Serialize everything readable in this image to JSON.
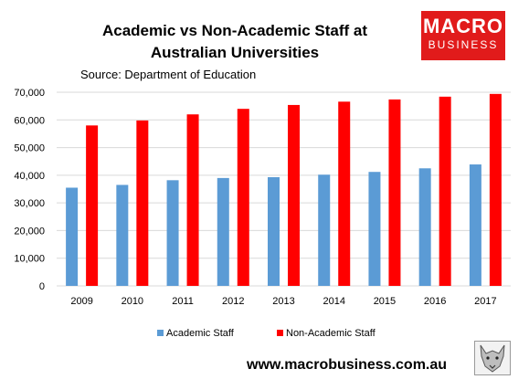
{
  "header": {
    "title": "Academic vs Non-Academic Staff at Australian Universities",
    "source": "Source: Department of Education"
  },
  "logo": {
    "line1": "MACRO",
    "line2": "BUSINESS",
    "color": "#e11b1b"
  },
  "footer": {
    "url": "www.macrobusiness.com.au",
    "icon": "wolf-icon"
  },
  "chart_data": {
    "type": "bar",
    "title": "Academic vs Non-Academic Staff at Australian Universities",
    "xlabel": "",
    "ylabel": "",
    "categories": [
      "2009",
      "2010",
      "2011",
      "2012",
      "2013",
      "2014",
      "2015",
      "2016",
      "2017"
    ],
    "series": [
      {
        "name": "Academic Staff",
        "color": "#5b9bd5",
        "values": [
          35500,
          36500,
          38200,
          39000,
          39300,
          40200,
          41200,
          42500,
          43900
        ]
      },
      {
        "name": "Non-Academic Staff",
        "color": "#ff0000",
        "values": [
          58000,
          59800,
          62000,
          64000,
          65400,
          66600,
          67400,
          68400,
          69400
        ]
      }
    ],
    "ylim": [
      0,
      70000
    ],
    "yticks": [
      "0",
      "10,000",
      "20,000",
      "30,000",
      "40,000",
      "50,000",
      "60,000",
      "70,000"
    ],
    "grid": true,
    "legend": "bottom"
  }
}
